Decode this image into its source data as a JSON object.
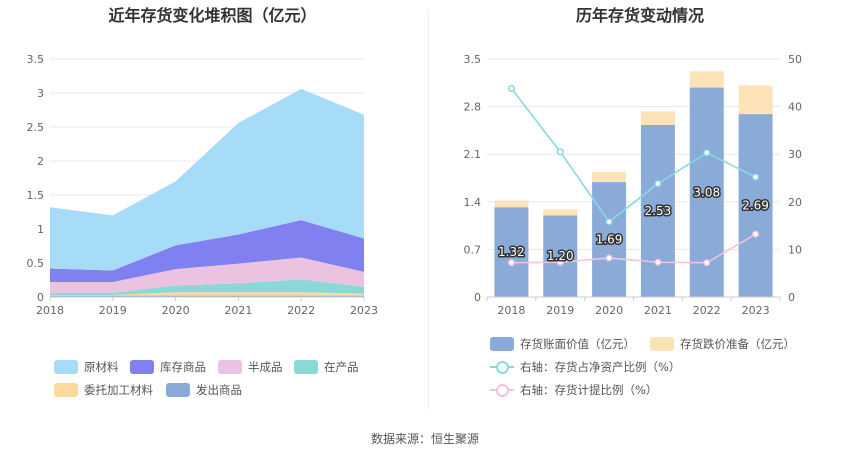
{
  "left_chart": {
    "title": "近年存货变化堆积图（亿元）",
    "legend": [
      {
        "label": "原材料",
        "color": "#a6dcf8"
      },
      {
        "label": "库存商品",
        "color": "#8080f0"
      },
      {
        "label": "半成品",
        "color": "#ebc3e0"
      },
      {
        "label": "在产品",
        "color": "#8ad8d8"
      },
      {
        "label": "委托加工材料",
        "color": "#fcd99c"
      },
      {
        "label": "发出商品",
        "color": "#8aaad8"
      }
    ]
  },
  "right_chart": {
    "title": "历年存货变动情况",
    "legend": [
      {
        "label": "存货账面价值（亿元）",
        "color": "#8aaad8",
        "kind": "bar"
      },
      {
        "label": "存货跌价准备（亿元）",
        "color": "#fde4b8",
        "kind": "bar"
      },
      {
        "label": "右轴：存货占净资产比例（%）",
        "color": "#8ad8e0",
        "kind": "line"
      },
      {
        "label": "右轴：存货计提比例（%）",
        "color": "#f0c3e0",
        "kind": "line"
      }
    ]
  },
  "source": "数据来源：恒生聚源",
  "chart_data": [
    {
      "type": "area",
      "title": "近年存货变化堆积图（亿元）",
      "stacked": true,
      "x": [
        "2018",
        "2019",
        "2020",
        "2021",
        "2022",
        "2023"
      ],
      "y_ticks": [
        "0",
        "0.5",
        "1",
        "1.5",
        "2",
        "2.5",
        "3",
        "3.5"
      ],
      "ylim": [
        0,
        3.5
      ],
      "series": [
        {
          "name": "发出商品",
          "color": "#8aaad8",
          "values": [
            0.02,
            0.02,
            0.02,
            0.02,
            0.02,
            0.02
          ]
        },
        {
          "name": "委托加工材料",
          "color": "#fcd99c",
          "values": [
            0.01,
            0.01,
            0.05,
            0.05,
            0.05,
            0.03
          ]
        },
        {
          "name": "在产品",
          "color": "#8ad8d8",
          "values": [
            0.03,
            0.03,
            0.1,
            0.13,
            0.19,
            0.1
          ]
        },
        {
          "name": "半成品",
          "color": "#ebc3e0",
          "values": [
            0.16,
            0.16,
            0.24,
            0.29,
            0.32,
            0.22
          ]
        },
        {
          "name": "库存商品",
          "color": "#8080f0",
          "values": [
            0.2,
            0.17,
            0.35,
            0.43,
            0.55,
            0.49
          ]
        },
        {
          "name": "原材料",
          "color": "#a6dcf8",
          "values": [
            0.9,
            0.81,
            0.94,
            1.64,
            1.93,
            1.82
          ]
        }
      ],
      "legend_position": "bottom",
      "grid": true
    },
    {
      "type": "bar",
      "title": "历年存货变动情况",
      "categories": [
        "2018",
        "2019",
        "2020",
        "2021",
        "2022",
        "2023"
      ],
      "left_ticks": [
        "0",
        "0.7",
        "1.4",
        "2.1",
        "2.8",
        "3.5"
      ],
      "right_ticks": [
        "0",
        "10",
        "20",
        "30",
        "40",
        "50"
      ],
      "ylim_left": [
        0,
        3.5
      ],
      "ylim_right": [
        0,
        50
      ],
      "stacked": true,
      "series": [
        {
          "name": "存货账面价值（亿元）",
          "color": "#8aaad8",
          "axis": "left",
          "values": [
            1.32,
            1.2,
            1.69,
            2.53,
            3.08,
            2.69
          ],
          "labels": [
            "1.32",
            "1.20",
            "1.69",
            "2.53",
            "3.08",
            "2.69"
          ]
        },
        {
          "name": "存货跌价准备（亿元）",
          "color": "#fde4b8",
          "axis": "left",
          "values": [
            0.1,
            0.09,
            0.15,
            0.2,
            0.24,
            0.42
          ]
        },
        {
          "name": "右轴：存货占净资产比例（%）",
          "color": "#8ad8e0",
          "axis": "right",
          "line": true,
          "values": [
            43.8,
            30.5,
            15.8,
            23.8,
            30.3,
            25.2
          ]
        },
        {
          "name": "右轴：存货计提比例（%）",
          "color": "#f0c3e0",
          "axis": "right",
          "line": true,
          "values": [
            7.2,
            7.3,
            8.2,
            7.3,
            7.2,
            13.2
          ]
        }
      ],
      "legend_position": "bottom",
      "grid": true
    }
  ]
}
